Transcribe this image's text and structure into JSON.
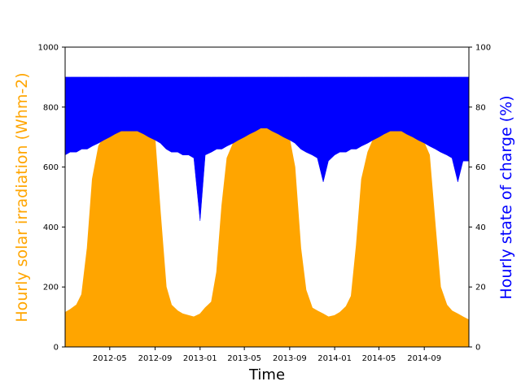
{
  "chart_data": {
    "type": "area",
    "xlabel": "Time",
    "x_ticks": [
      "2012-05",
      "2012-09",
      "2013-01",
      "2013-05",
      "2013-09",
      "2014-01",
      "2014-05",
      "2014-09"
    ],
    "x_range": [
      "2012-01-01",
      "2014-12-31"
    ],
    "y_left": {
      "label": "Hourly solar irradiation (Whm-2)",
      "ylim": [
        0,
        1000
      ],
      "ticks": [
        0,
        200,
        400,
        600,
        800,
        1000
      ],
      "color": "#FFA500"
    },
    "y_right": {
      "label": "Hourly state of charge (%)",
      "ylim": [
        0,
        100
      ],
      "ticks": [
        0,
        20,
        40,
        60,
        80,
        100
      ],
      "color": "#0000FF"
    },
    "series": [
      {
        "name": "Hourly solar irradiation (Whm-2)",
        "axis": "left",
        "color": "#FFA500",
        "x": [
          "2012-01-01",
          "2012-01-15",
          "2012-02-01",
          "2012-02-15",
          "2012-03-01",
          "2012-03-15",
          "2012-04-01",
          "2012-04-15",
          "2012-05-01",
          "2012-05-15",
          "2012-06-01",
          "2012-06-15",
          "2012-07-01",
          "2012-07-15",
          "2012-08-01",
          "2012-08-15",
          "2012-09-01",
          "2012-09-15",
          "2012-10-01",
          "2012-10-15",
          "2012-11-01",
          "2012-11-15",
          "2012-12-01",
          "2012-12-15",
          "2013-01-01",
          "2013-01-15",
          "2013-02-01",
          "2013-02-15",
          "2013-03-01",
          "2013-03-15",
          "2013-04-01",
          "2013-04-15",
          "2013-05-01",
          "2013-05-15",
          "2013-06-01",
          "2013-06-15",
          "2013-07-01",
          "2013-07-15",
          "2013-08-01",
          "2013-08-15",
          "2013-09-01",
          "2013-09-15",
          "2013-10-01",
          "2013-10-15",
          "2013-11-01",
          "2013-11-15",
          "2013-12-01",
          "2013-12-15",
          "2014-01-01",
          "2014-01-15",
          "2014-02-01",
          "2014-02-15",
          "2014-03-01",
          "2014-03-15",
          "2014-04-01",
          "2014-04-15",
          "2014-05-01",
          "2014-05-15",
          "2014-06-01",
          "2014-06-15",
          "2014-07-01",
          "2014-07-15",
          "2014-08-01",
          "2014-08-15",
          "2014-09-01",
          "2014-09-15",
          "2014-10-01",
          "2014-10-15",
          "2014-11-01",
          "2014-11-15",
          "2014-12-01",
          "2014-12-15",
          "2014-12-31"
        ],
        "values": [
          115,
          125,
          140,
          175,
          330,
          560,
          670,
          700,
          710,
          720,
          730,
          745,
          745,
          730,
          710,
          700,
          690,
          450,
          200,
          140,
          120,
          110,
          105,
          100,
          110,
          130,
          150,
          250,
          470,
          630,
          680,
          690,
          700,
          710,
          720,
          730,
          740,
          735,
          720,
          705,
          690,
          600,
          330,
          190,
          130,
          120,
          110,
          100,
          105,
          115,
          135,
          170,
          340,
          560,
          650,
          690,
          700,
          715,
          720,
          725,
          725,
          720,
          710,
          690,
          680,
          640,
          400,
          200,
          140,
          120,
          110,
          100,
          90
        ]
      },
      {
        "name": "Hourly state of charge (%)",
        "axis": "right",
        "color": "#0000FF",
        "x": [
          "2012-01-01",
          "2012-01-15",
          "2012-02-01",
          "2012-02-15",
          "2012-03-01",
          "2012-03-15",
          "2012-04-01",
          "2012-04-15",
          "2012-05-01",
          "2012-05-15",
          "2012-06-01",
          "2012-06-15",
          "2012-07-01",
          "2012-07-15",
          "2012-08-01",
          "2012-08-15",
          "2012-09-01",
          "2012-09-15",
          "2012-10-01",
          "2012-10-15",
          "2012-11-01",
          "2012-11-15",
          "2012-12-01",
          "2012-12-15",
          "2013-01-01",
          "2013-01-15",
          "2013-02-01",
          "2013-02-15",
          "2013-03-01",
          "2013-03-15",
          "2013-04-01",
          "2013-04-15",
          "2013-05-01",
          "2013-05-15",
          "2013-06-01",
          "2013-06-15",
          "2013-07-01",
          "2013-07-15",
          "2013-08-01",
          "2013-08-15",
          "2013-09-01",
          "2013-09-15",
          "2013-10-01",
          "2013-10-15",
          "2013-11-01",
          "2013-11-15",
          "2013-12-01",
          "2013-12-15",
          "2014-01-01",
          "2014-01-15",
          "2014-02-01",
          "2014-02-15",
          "2014-03-01",
          "2014-03-15",
          "2014-04-01",
          "2014-04-15",
          "2014-05-01",
          "2014-05-15",
          "2014-06-01",
          "2014-06-15",
          "2014-07-01",
          "2014-07-15",
          "2014-08-01",
          "2014-08-15",
          "2014-09-01",
          "2014-09-15",
          "2014-10-01",
          "2014-10-15",
          "2014-11-01",
          "2014-11-15",
          "2014-12-01",
          "2014-12-15",
          "2014-12-31"
        ],
        "values_min": [
          64,
          65,
          65,
          66,
          66,
          67,
          68,
          69,
          70,
          71,
          72,
          72,
          72,
          72,
          71,
          70,
          69,
          68,
          66,
          65,
          65,
          64,
          64,
          63,
          42,
          64,
          65,
          66,
          66,
          67,
          68,
          69,
          70,
          71,
          72,
          73,
          73,
          72,
          71,
          70,
          69,
          68,
          66,
          65,
          64,
          63,
          55,
          62,
          64,
          65,
          65,
          66,
          66,
          67,
          68,
          69,
          70,
          71,
          72,
          72,
          72,
          71,
          70,
          69,
          68,
          67,
          66,
          65,
          64,
          63,
          55,
          62,
          62
        ],
        "values_max": [
          90,
          90,
          90,
          90,
          90,
          90,
          90,
          90,
          90,
          90,
          90,
          90,
          90,
          90,
          90,
          90,
          90,
          90,
          90,
          90,
          90,
          90,
          90,
          90,
          90,
          90,
          90,
          90,
          90,
          90,
          90,
          90,
          90,
          90,
          90,
          90,
          90,
          90,
          90,
          90,
          90,
          90,
          90,
          90,
          90,
          90,
          90,
          90,
          90,
          90,
          90,
          90,
          90,
          90,
          90,
          90,
          90,
          90,
          90,
          90,
          90,
          90,
          90,
          90,
          90,
          90,
          90,
          90,
          90,
          90,
          90,
          90,
          90
        ]
      }
    ],
    "grid": false
  }
}
